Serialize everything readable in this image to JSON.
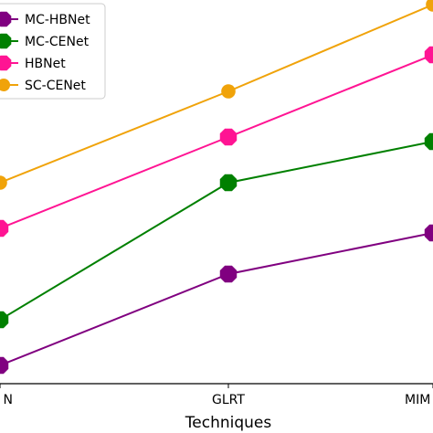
{
  "chart_data": {
    "type": "line",
    "xlabel": "Techniques",
    "ylabel": "",
    "categories": [
      "N",
      "GLRT",
      "MIM"
    ],
    "ylim": [
      0,
      4.2
    ],
    "grid": false,
    "legend": "top-left",
    "series": [
      {
        "name": "MC-HBNet",
        "color": "#800080",
        "marker": "octagon",
        "values": [
          0.2,
          1.2,
          1.65
        ]
      },
      {
        "name": "MC-CENet",
        "color": "#008000",
        "marker": "octagon",
        "values": [
          0.7,
          2.2,
          2.65
        ]
      },
      {
        "name": "HBNet",
        "color": "#ff1493",
        "marker": "octagon",
        "values": [
          1.7,
          2.7,
          3.6
        ]
      },
      {
        "name": "SC-CENet",
        "color": "#f0a30a",
        "marker": "circle",
        "values": [
          2.2,
          3.2,
          4.15
        ]
      }
    ]
  }
}
